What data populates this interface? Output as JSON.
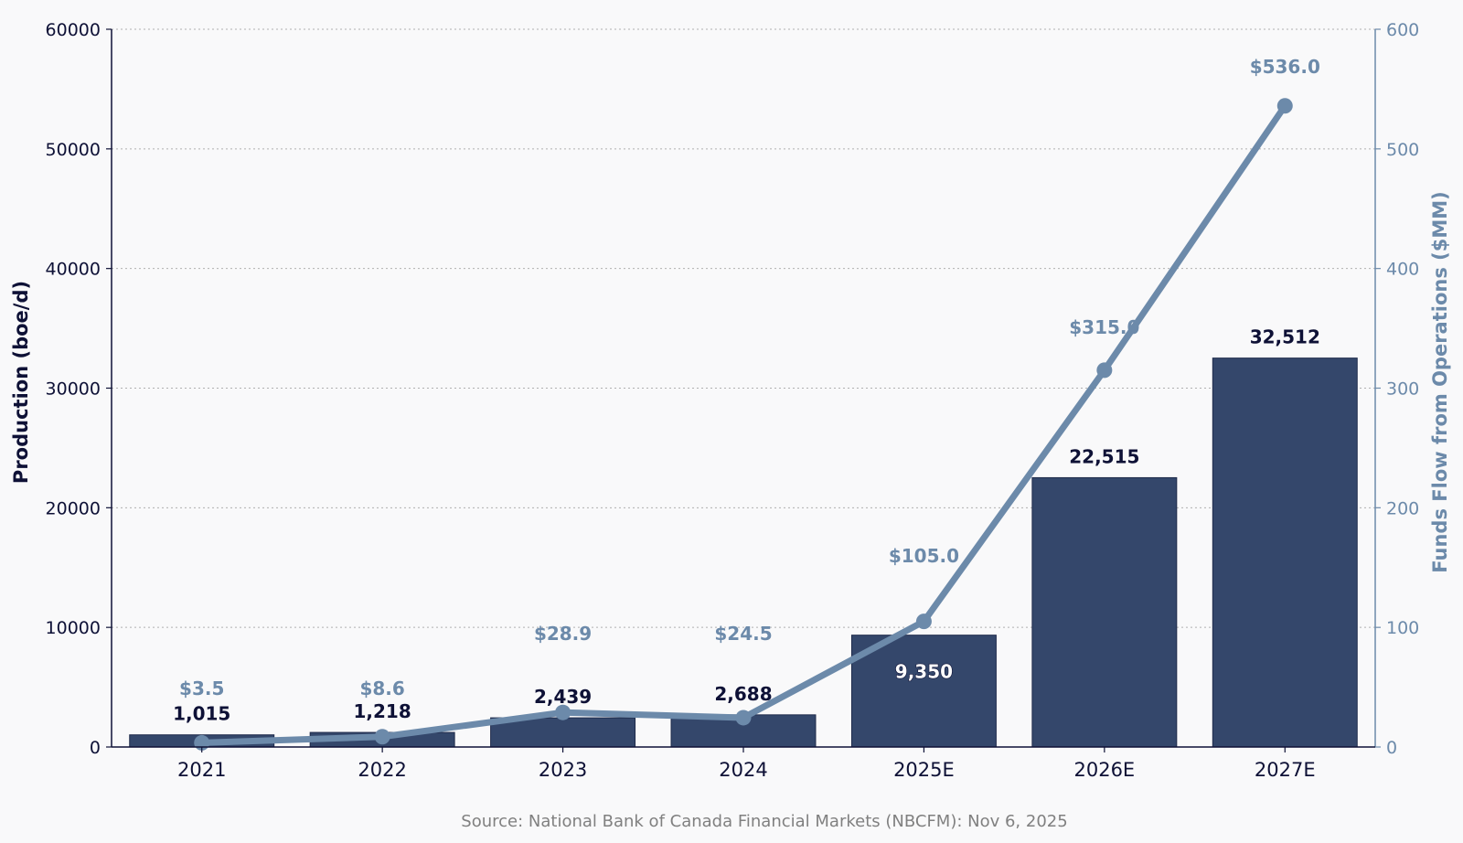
{
  "chart_data": {
    "type": "bar",
    "categories": [
      "2021",
      "2022",
      "2023",
      "2024",
      "2025E",
      "2026E",
      "2027E"
    ],
    "series": [
      {
        "type": "bar",
        "axis": "left",
        "values": [
          1015,
          1218,
          2439,
          2688,
          9350,
          22515,
          32512
        ],
        "labels": [
          "1,015",
          "1,218",
          "2,439",
          "2,688",
          "9,350",
          "22,515",
          "32,512"
        ],
        "color": "#34476b"
      },
      {
        "type": "line",
        "axis": "right",
        "values": [
          3.5,
          8.6,
          28.9,
          24.5,
          105.0,
          315.0,
          536.0
        ],
        "labels": [
          "$3.5",
          "$8.6",
          "$28.9",
          "$24.5",
          "$105.0",
          "$315.0",
          "$536.0"
        ],
        "color": "#6c8aaa"
      }
    ],
    "ylabel": "Production (boe/d)",
    "y2label": "Funds Flow from Operations ($MM)",
    "ylim": [
      0,
      60000
    ],
    "y2lim": [
      0,
      600
    ],
    "yticks": [
      "0",
      "10000",
      "20000",
      "30000",
      "40000",
      "50000",
      "60000"
    ],
    "y2ticks": [
      "0",
      "100",
      "200",
      "300",
      "400",
      "500",
      "600"
    ],
    "grid": true,
    "source": "Source: National Bank of Canada Financial Markets (NBCFM): Nov 6, 2025"
  },
  "colors": {
    "bar": "#34476b",
    "line": "#6c8aaa",
    "left_axis": "#0e1136",
    "right_axis": "#6c8aaa",
    "bar_label_dark": "#0e1136",
    "bar_label_light": "#ffffff",
    "grid": "#b0b0b0"
  }
}
